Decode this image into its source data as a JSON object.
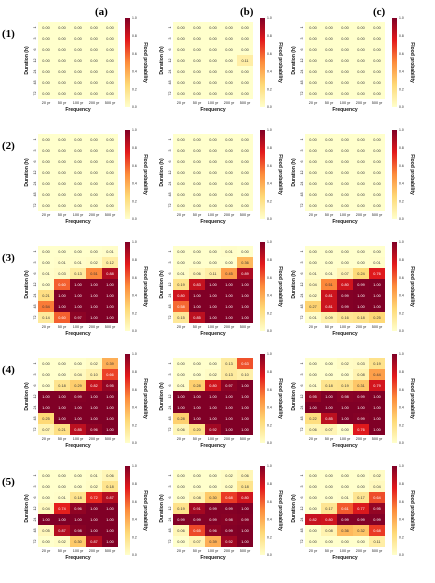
{
  "column_labels": [
    "(a)",
    "(b)",
    "(c)"
  ],
  "row_labels": [
    "(1)",
    "(2)",
    "(3)",
    "(4)",
    "(5)"
  ],
  "chart_data": {
    "type": "heatmap",
    "xlabel": "Frequency",
    "ylabel": "Duration (h)",
    "colorbar_label": "Flood probability",
    "x_ticks": [
      "20 yr",
      "50 yr",
      "100 yr",
      "200 yr",
      "500 yr"
    ],
    "y_ticks": [
      "1",
      "3",
      "6",
      "12",
      "24",
      "48",
      "72"
    ],
    "colorbar_ticks": [
      "0.0",
      "0.2",
      "0.4",
      "0.6",
      "0.8",
      "1.0"
    ],
    "color_range": [
      0,
      1
    ],
    "colors": [
      "#ffffcc",
      "#fed976",
      "#fd8d3c",
      "#e31a1c",
      "#800026"
    ],
    "panels": [
      {
        "row": "(1)",
        "col": "(a)",
        "values": [
          [
            "0.00",
            "0.00",
            "0.00",
            "0.00",
            "0.00"
          ],
          [
            "0.00",
            "0.00",
            "0.00",
            "0.00",
            "0.00"
          ],
          [
            "0.00",
            "0.00",
            "0.00",
            "0.00",
            "0.00"
          ],
          [
            "0.00",
            "0.00",
            "0.00",
            "0.00",
            "0.00"
          ],
          [
            "0.00",
            "0.00",
            "0.00",
            "0.00",
            "0.00"
          ],
          [
            "0.00",
            "0.00",
            "0.00",
            "0.00",
            "0.00"
          ],
          [
            "0.00",
            "0.00",
            "0.00",
            "0.00",
            "0.00"
          ]
        ]
      },
      {
        "row": "(1)",
        "col": "(b)",
        "values": [
          [
            "0.00",
            "0.00",
            "0.00",
            "0.00",
            "0.00"
          ],
          [
            "0.00",
            "0.00",
            "0.00",
            "0.00",
            "0.00"
          ],
          [
            "0.00",
            "0.00",
            "0.00",
            "0.00",
            "0.00"
          ],
          [
            "0.00",
            "0.00",
            "0.00",
            "0.00",
            "0.11"
          ],
          [
            "0.00",
            "0.00",
            "0.00",
            "0.00",
            "0.00"
          ],
          [
            "0.00",
            "0.00",
            "0.00",
            "0.00",
            "0.00"
          ],
          [
            "0.00",
            "0.00",
            "0.00",
            "0.00",
            "0.00"
          ]
        ]
      },
      {
        "row": "(1)",
        "col": "(c)",
        "values": [
          [
            "0.00",
            "0.00",
            "0.00",
            "0.00",
            "0.00"
          ],
          [
            "0.00",
            "0.00",
            "0.00",
            "0.00",
            "0.00"
          ],
          [
            "0.00",
            "0.00",
            "0.00",
            "0.00",
            "0.00"
          ],
          [
            "0.00",
            "0.00",
            "0.00",
            "0.00",
            "0.00"
          ],
          [
            "0.00",
            "0.00",
            "0.00",
            "0.00",
            "0.00"
          ],
          [
            "0.00",
            "0.00",
            "0.00",
            "0.00",
            "0.00"
          ],
          [
            "0.00",
            "0.00",
            "0.00",
            "0.00",
            "0.00"
          ]
        ]
      },
      {
        "row": "(2)",
        "col": "(a)",
        "values": [
          [
            "0.00",
            "0.00",
            "0.00",
            "0.00",
            "0.00"
          ],
          [
            "0.00",
            "0.00",
            "0.00",
            "0.00",
            "0.00"
          ],
          [
            "0.00",
            "0.00",
            "0.00",
            "0.00",
            "0.00"
          ],
          [
            "0.00",
            "0.00",
            "0.00",
            "0.00",
            "0.00"
          ],
          [
            "0.00",
            "0.00",
            "0.00",
            "0.00",
            "0.00"
          ],
          [
            "0.00",
            "0.00",
            "0.00",
            "0.00",
            "0.00"
          ],
          [
            "0.00",
            "0.00",
            "0.00",
            "0.00",
            "0.00"
          ]
        ]
      },
      {
        "row": "(2)",
        "col": "(b)",
        "values": [
          [
            "0.00",
            "0.00",
            "0.00",
            "0.00",
            "0.00"
          ],
          [
            "0.00",
            "0.00",
            "0.00",
            "0.00",
            "0.00"
          ],
          [
            "0.00",
            "0.00",
            "0.00",
            "0.00",
            "0.00"
          ],
          [
            "0.00",
            "0.00",
            "0.00",
            "0.00",
            "0.00"
          ],
          [
            "0.00",
            "0.00",
            "0.00",
            "0.00",
            "0.00"
          ],
          [
            "0.00",
            "0.00",
            "0.00",
            "0.00",
            "0.00"
          ],
          [
            "0.00",
            "0.00",
            "0.00",
            "0.00",
            "0.00"
          ]
        ]
      },
      {
        "row": "(2)",
        "col": "(c)",
        "values": [
          [
            "0.00",
            "0.00",
            "0.00",
            "0.00",
            "0.00"
          ],
          [
            "0.00",
            "0.00",
            "0.00",
            "0.00",
            "0.00"
          ],
          [
            "0.00",
            "0.00",
            "0.00",
            "0.00",
            "0.00"
          ],
          [
            "0.00",
            "0.00",
            "0.00",
            "0.00",
            "0.00"
          ],
          [
            "0.00",
            "0.00",
            "0.00",
            "0.00",
            "0.00"
          ],
          [
            "0.00",
            "0.00",
            "0.00",
            "0.00",
            "0.00"
          ],
          [
            "0.00",
            "0.00",
            "0.00",
            "0.00",
            "0.00"
          ]
        ]
      },
      {
        "row": "(3)",
        "col": "(a)",
        "values": [
          [
            "0.00",
            "0.00",
            "0.00",
            "0.00",
            "0.01"
          ],
          [
            "0.00",
            "0.01",
            "0.01",
            "0.02",
            "0.12"
          ],
          [
            "0.01",
            "0.03",
            "0.13",
            "0.51",
            "0.88"
          ],
          [
            "0.00",
            "0.60",
            "1.00",
            "1.00",
            "1.00"
          ],
          [
            "0.21",
            "1.00",
            "1.00",
            "1.00",
            "1.00"
          ],
          [
            "0.54",
            "1.00",
            "1.00",
            "1.00",
            "1.00"
          ],
          [
            "0.14",
            "0.60",
            "0.97",
            "1.00",
            "1.00"
          ]
        ]
      },
      {
        "row": "(3)",
        "col": "(b)",
        "values": [
          [
            "0.00",
            "0.00",
            "0.00",
            "0.01",
            "0.00"
          ],
          [
            "0.00",
            "0.00",
            "0.00",
            "0.00",
            "0.36"
          ],
          [
            "0.01",
            "0.06",
            "0.11",
            "0.45",
            "0.89"
          ],
          [
            "0.19",
            "0.83",
            "1.00",
            "1.00",
            "1.00"
          ],
          [
            "0.80",
            "1.00",
            "1.00",
            "1.00",
            "1.00"
          ],
          [
            "0.58",
            "1.00",
            "1.00",
            "1.00",
            "1.00"
          ],
          [
            "0.15",
            "0.85",
            "1.00",
            "1.00",
            "1.00"
          ]
        ]
      },
      {
        "row": "(3)",
        "col": "(c)",
        "values": [
          [
            "0.00",
            "0.00",
            "0.00",
            "0.00",
            "0.00"
          ],
          [
            "0.00",
            "0.00",
            "0.00",
            "0.00",
            "0.01"
          ],
          [
            "0.01",
            "0.01",
            "0.07",
            "0.24",
            "0.76"
          ],
          [
            "0.04",
            "0.51",
            "0.80",
            "0.99",
            "1.00"
          ],
          [
            "0.02",
            "0.81",
            "0.99",
            "1.00",
            "1.00"
          ],
          [
            "0.27",
            "0.81",
            "0.99",
            "1.00",
            "1.00"
          ],
          [
            "0.01",
            "0.09",
            "0.16",
            "0.18",
            "0.25"
          ]
        ]
      },
      {
        "row": "(4)",
        "col": "(a)",
        "values": [
          [
            "0.00",
            "0.00",
            "0.00",
            "0.02",
            "0.39"
          ],
          [
            "0.00",
            "0.00",
            "0.04",
            "0.10",
            "0.66"
          ],
          [
            "0.00",
            "0.18",
            "0.29",
            "0.82",
            "0.95"
          ],
          [
            "1.00",
            "1.00",
            "0.99",
            "1.00",
            "1.00"
          ],
          [
            "1.00",
            "1.00",
            "1.00",
            "1.00",
            "1.00"
          ],
          [
            "0.25",
            "1.00",
            "1.00",
            "1.00",
            "1.00"
          ],
          [
            "0.07",
            "0.21",
            "0.85",
            "0.96",
            "1.00"
          ]
        ]
      },
      {
        "row": "(4)",
        "col": "(b)",
        "values": [
          [
            "0.00",
            "0.00",
            "0.00",
            "0.13",
            "0.63"
          ],
          [
            "0.00",
            "0.00",
            "0.02",
            "0.13",
            "0.10"
          ],
          [
            "0.01",
            "0.28",
            "0.80",
            "0.97",
            "1.00"
          ],
          [
            "1.00",
            "1.00",
            "1.00",
            "1.00",
            "1.00"
          ],
          [
            "1.00",
            "1.00",
            "1.00",
            "1.00",
            "1.00"
          ],
          [
            "0.28",
            "1.00",
            "1.00",
            "1.00",
            "1.00"
          ],
          [
            "0.06",
            "0.20",
            "0.92",
            "1.00",
            "1.00"
          ]
        ]
      },
      {
        "row": "(4)",
        "col": "(c)",
        "values": [
          [
            "0.00",
            "0.00",
            "0.02",
            "0.03",
            "0.19"
          ],
          [
            "0.00",
            "0.00",
            "0.00",
            "0.08",
            "0.44"
          ],
          [
            "0.01",
            "0.18",
            "0.19",
            "0.31",
            "0.79"
          ],
          [
            "0.95",
            "1.00",
            "0.98",
            "0.99",
            "1.00"
          ],
          [
            "1.00",
            "1.00",
            "1.00",
            "1.00",
            "1.00"
          ],
          [
            "0.22",
            "0.85",
            "1.00",
            "0.99",
            "1.00"
          ],
          [
            "0.06",
            "0.07",
            "0.00",
            "0.76",
            "1.00"
          ]
        ]
      },
      {
        "row": "(5)",
        "col": "(a)",
        "values": [
          [
            "0.00",
            "0.00",
            "0.00",
            "0.01",
            "0.06"
          ],
          [
            "0.00",
            "0.00",
            "0.00",
            "0.02",
            "0.18"
          ],
          [
            "0.00",
            "0.01",
            "0.18",
            "0.72",
            "0.87"
          ],
          [
            "0.04",
            "0.74",
            "0.96",
            "1.00",
            "1.00"
          ],
          [
            "1.00",
            "1.00",
            "1.00",
            "1.00",
            "1.00"
          ],
          [
            "0.05",
            "0.87",
            "0.98",
            "1.00",
            "1.00"
          ],
          [
            "0.00",
            "0.02",
            "0.30",
            "0.87",
            "1.00"
          ]
        ]
      },
      {
        "row": "(5)",
        "col": "(b)",
        "values": [
          [
            "0.00",
            "0.00",
            "0.00",
            "0.02",
            "0.06"
          ],
          [
            "0.00",
            "0.00",
            "0.00",
            "0.02",
            "0.18"
          ],
          [
            "0.00",
            "0.08",
            "0.30",
            "0.68",
            "0.80"
          ],
          [
            "0.19",
            "0.91",
            "0.99",
            "0.99",
            "1.00"
          ],
          [
            "0.99",
            "0.99",
            "0.99",
            "0.98",
            "0.99"
          ],
          [
            "0.06",
            "0.65",
            "0.96",
            "0.99",
            "1.00"
          ],
          [
            "0.00",
            "0.07",
            "0.39",
            "0.92",
            "1.00"
          ]
        ]
      },
      {
        "row": "(5)",
        "col": "(c)",
        "values": [
          [
            "0.00",
            "0.00",
            "0.00",
            "0.00",
            "0.02"
          ],
          [
            "0.00",
            "0.00",
            "0.00",
            "0.00",
            "0.04"
          ],
          [
            "0.00",
            "0.00",
            "0.01",
            "0.17",
            "0.64"
          ],
          [
            "0.00",
            "0.17",
            "0.61",
            "0.77",
            "0.95"
          ],
          [
            "0.82",
            "0.80",
            "0.99",
            "0.99",
            "0.99"
          ],
          [
            "0.00",
            "0.08",
            "0.36",
            "0.32",
            "0.68"
          ],
          [
            "0.00",
            "0.00",
            "0.00",
            "0.00",
            "0.11"
          ]
        ]
      }
    ]
  }
}
